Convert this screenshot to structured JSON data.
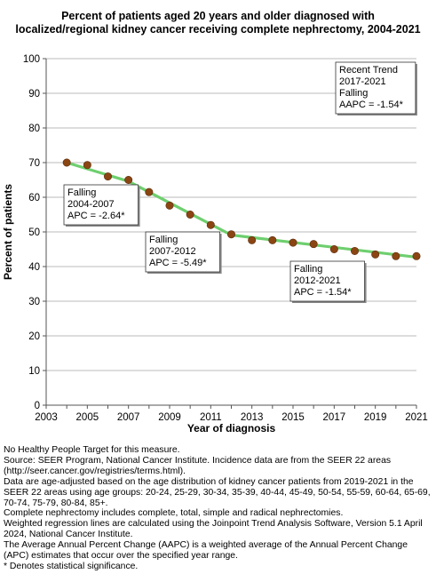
{
  "title_lines": [
    "Percent of patients aged 20 years and older diagnosed with",
    "localized/regional kidney cancer receiving complete nephrectomy, 2004-2021"
  ],
  "chart_data": {
    "type": "line",
    "title": "Percent of patients aged 20 years and older diagnosed with localized/regional kidney cancer receiving complete nephrectomy, 2004-2021",
    "xlabel": "Year of diagnosis",
    "ylabel": "Percent of patients",
    "xlim": [
      2003,
      2021
    ],
    "ylim": [
      0,
      100
    ],
    "x_ticks": [
      "2003",
      "2005",
      "2007",
      "2009",
      "2011",
      "2013",
      "2015",
      "2017",
      "2019",
      "2021"
    ],
    "y_ticks": [
      "0",
      "10",
      "20",
      "30",
      "40",
      "50",
      "60",
      "70",
      "80",
      "90",
      "100"
    ],
    "grid": "horizontal",
    "series": [
      {
        "name": "",
        "x": [
          2004,
          2005,
          2006,
          2007,
          2008,
          2009,
          2010,
          2011,
          2012,
          2013,
          2014,
          2015,
          2016,
          2017,
          2018,
          2019,
          2020,
          2021
        ],
        "values": [
          70.0,
          69.3,
          66.0,
          65.0,
          61.5,
          57.6,
          55.0,
          52.0,
          49.3,
          47.6,
          47.6,
          46.9,
          46.5,
          45.0,
          44.5,
          43.5,
          43.0,
          43.0
        ],
        "point_color": "#8B4513",
        "line_color": "#6ECF6E"
      }
    ],
    "trend_segments": [
      {
        "x": [
          2004,
          2007
        ],
        "y": [
          70.0,
          64.6
        ]
      },
      {
        "x": [
          2007,
          2012
        ],
        "y": [
          64.6,
          49.1
        ]
      },
      {
        "x": [
          2012,
          2021
        ],
        "y": [
          49.1,
          42.7
        ]
      }
    ],
    "annotations": [
      {
        "id": "recent",
        "lines": [
          "Recent Trend",
          "2017-2021",
          "Falling",
          "AAPC = -1.54*"
        ]
      },
      {
        "id": "seg1",
        "lines": [
          "Falling",
          "2004-2007",
          "APC = -2.64*"
        ]
      },
      {
        "id": "seg2",
        "lines": [
          "Falling",
          "2007-2012",
          "APC = -5.49*"
        ]
      },
      {
        "id": "seg3",
        "lines": [
          "Falling",
          "2012-2021",
          "APC = -1.54*"
        ]
      }
    ]
  },
  "footnotes": [
    "No Healthy People Target for this measure.",
    "Source: SEER Program, National Cancer Institute. Incidence data are from the SEER 22 areas (http://seer.cancer.gov/registries/terms.html).",
    "Data are age-adjusted based on the age distribution of kidney cancer patients from 2019-2021 in the SEER 22 areas using age groups: 20-24, 25-29, 30-34, 35-39, 40-44, 45-49, 50-54, 55-59, 60-64, 65-69, 70-74, 75-79, 80-84, 85+.",
    "Complete nephrectomy includes complete, total, simple and radical nephrectomies.",
    "Weighted regression lines are calculated using the Joinpoint Trend Analysis Software, Version 5.1 April 2024, National Cancer Institute.",
    "The Average Annual Percent Change (AAPC) is a weighted average of the Annual Percent Change (APC) estimates that occur over the specified year range.",
    "* Denotes statistical significance."
  ]
}
